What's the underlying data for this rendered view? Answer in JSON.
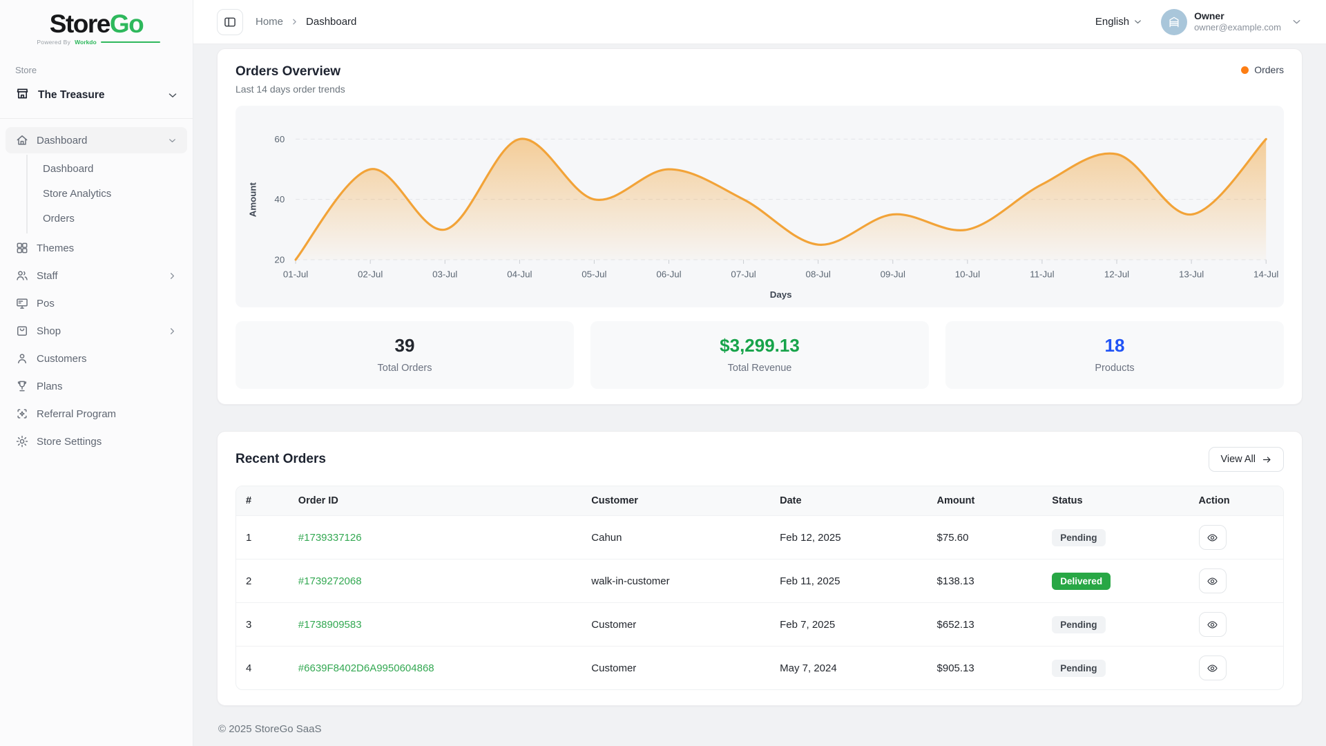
{
  "brand": {
    "store_part": "Store",
    "go_part": "Go",
    "powered_by": "Powered By",
    "workdo": "Workdo",
    "green": "#2eb85c"
  },
  "sidebar": {
    "section_label": "Store",
    "store_name": "The Treasure",
    "items": [
      {
        "label": "Dashboard",
        "icon": "home-icon",
        "active": true,
        "chevron": "down",
        "children": [
          {
            "label": "Dashboard"
          },
          {
            "label": "Store Analytics"
          },
          {
            "label": "Orders"
          }
        ]
      },
      {
        "label": "Themes",
        "icon": "grid-icon"
      },
      {
        "label": "Staff",
        "icon": "users-icon",
        "chevron": "right"
      },
      {
        "label": "Pos",
        "icon": "monitor-icon"
      },
      {
        "label": "Shop",
        "icon": "bag-icon",
        "chevron": "right"
      },
      {
        "label": "Customers",
        "icon": "user-icon"
      },
      {
        "label": "Plans",
        "icon": "trophy-icon"
      },
      {
        "label": "Referral Program",
        "icon": "referral-icon"
      },
      {
        "label": "Store Settings",
        "icon": "gear-icon"
      }
    ]
  },
  "header": {
    "breadcrumb": {
      "home": "Home",
      "current": "Dashboard"
    },
    "language": "English",
    "user": {
      "name": "Owner",
      "email": "owner@example.com",
      "avatar_bg": "#a9c6da"
    }
  },
  "orders_overview": {
    "title": "Orders Overview",
    "subtitle": "Last 14 days order trends",
    "legend_label": "Orders",
    "legend_color": "#fd7e14"
  },
  "chart_data": {
    "type": "area",
    "title": "Orders Overview",
    "series": [
      {
        "name": "Orders",
        "color": "#f2a338",
        "values": [
          20,
          50,
          30,
          60,
          40,
          50,
          40,
          25,
          35,
          30,
          45,
          55,
          35,
          60
        ]
      }
    ],
    "categories": [
      "01-Jul",
      "02-Jul",
      "03-Jul",
      "04-Jul",
      "05-Jul",
      "06-Jul",
      "07-Jul",
      "08-Jul",
      "09-Jul",
      "10-Jul",
      "11-Jul",
      "12-Jul",
      "13-Jul",
      "14-Jul"
    ],
    "xlabel": "Days",
    "ylabel": "Amount",
    "ylim": [
      20,
      60
    ],
    "yticks": [
      20,
      40,
      60
    ],
    "grid": "dashed-horizontal",
    "legend_position": "top-right"
  },
  "stats": [
    {
      "value": "39",
      "label": "Total Orders",
      "color": "#23272e"
    },
    {
      "value": "$3,299.13",
      "label": "Total Revenue",
      "color": "#17a34a"
    },
    {
      "value": "18",
      "label": "Products",
      "color": "#2053f5"
    }
  ],
  "recent_orders": {
    "title": "Recent Orders",
    "view_all_label": "View All",
    "columns": [
      "#",
      "Order ID",
      "Customer",
      "Date",
      "Amount",
      "Status",
      "Action"
    ],
    "rows": [
      {
        "index": "1",
        "order_id": "#1739337126",
        "customer": "Cahun",
        "date": "Feb 12, 2025",
        "amount": "$75.60",
        "status": "Pending"
      },
      {
        "index": "2",
        "order_id": "#1739272068",
        "customer": "walk-in-customer",
        "date": "Feb 11, 2025",
        "amount": "$138.13",
        "status": "Delivered"
      },
      {
        "index": "3",
        "order_id": "#1738909583",
        "customer": "Customer",
        "date": "Feb 7, 2025",
        "amount": "$652.13",
        "status": "Pending"
      },
      {
        "index": "4",
        "order_id": "#6639F8402D6A9950604868",
        "customer": "Customer",
        "date": "May 7, 2024",
        "amount": "$905.13",
        "status": "Pending"
      }
    ],
    "status_colors": {
      "Pending": {
        "bg": "#f1f3f5",
        "fg": "#3f454d"
      },
      "Delivered": {
        "bg": "#28a745",
        "fg": "#ffffff"
      }
    }
  },
  "footer": {
    "copyright": "© 2025 StoreGo SaaS"
  }
}
